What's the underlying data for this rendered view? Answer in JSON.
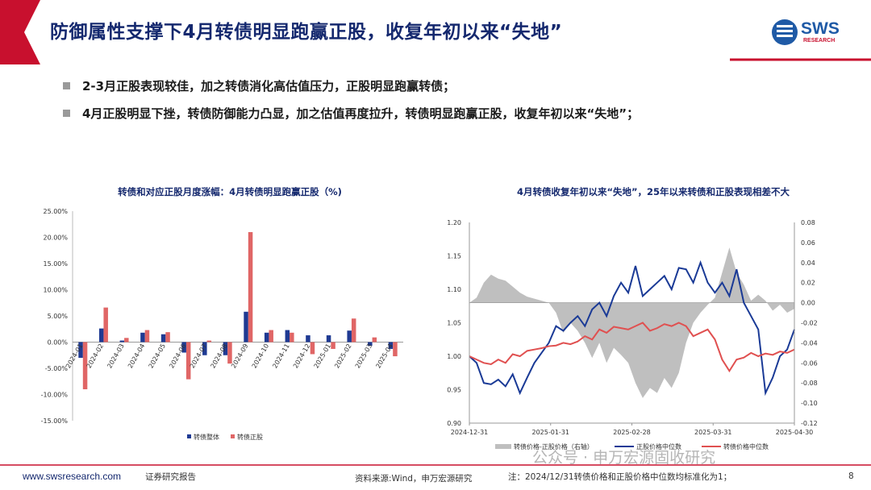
{
  "header": {
    "title": "防御属性支撑下4月转债明显跑赢正股，收复年初以来“失地”",
    "logo_text": "SWS",
    "logo_subtext": "RESEARCH",
    "brand_colors": {
      "navy": "#14286e",
      "red": "#c8102e",
      "bar_blue": "#1f3a93",
      "bar_red": "#e06666",
      "area_gray": "#bfbfbf"
    }
  },
  "bullets": [
    "2-3月正股表现较佳，加之转债消化高估值压力，正股明显跑赢转债；",
    "4月正股明显下挫，转债防御能力凸显，加之估值再度拉升，转债明显跑赢正股，收复年初以来“失地”；"
  ],
  "chart_data": [
    {
      "type": "bar",
      "title": "转债和对应正股月度涨幅：4月转债明显跑赢正股（%)",
      "categories": [
        "2024-01",
        "2024-02",
        "2024-03",
        "2024-04",
        "2024-05",
        "2024-06",
        "2024-07",
        "2024-08",
        "2024-09",
        "2024-10",
        "2024-11",
        "2024-12",
        "2025-01",
        "2025-02",
        "2025-03",
        "2025-04"
      ],
      "series": [
        {
          "name": "转债整体",
          "color": "#1f3a93",
          "values": [
            -3.0,
            2.6,
            0.3,
            1.8,
            1.5,
            -2.0,
            -2.5,
            -2.5,
            5.8,
            1.8,
            2.3,
            1.3,
            1.3,
            2.2,
            -0.7,
            -1.3
          ]
        },
        {
          "name": "转债正股",
          "color": "#e06666",
          "values": [
            -9.0,
            6.6,
            0.8,
            2.3,
            1.9,
            -7.1,
            0.3,
            -4.1,
            21.0,
            2.3,
            1.8,
            -2.3,
            -1.3,
            4.5,
            0.9,
            -2.7
          ]
        }
      ],
      "yticks": [
        "25.00%",
        "20.00%",
        "15.00%",
        "10.00%",
        "5.00%",
        "0.00%",
        "-5.00%",
        "-10.00%",
        "-15.00%"
      ],
      "ylim": [
        -15,
        25
      ],
      "legend": "bottom"
    },
    {
      "type": "line",
      "title": "4月转债收复年初以来“失地”，25年以来转债和正股表现相差不大",
      "x_ticks": [
        "2024-12-31",
        "2025-01-31",
        "2025-02-28",
        "2025-03-31",
        "2025-04-30"
      ],
      "y_left": {
        "ticks": [
          "1.20",
          "1.15",
          "1.10",
          "1.05",
          "1.00",
          "0.95",
          "0.90"
        ],
        "range": [
          0.9,
          1.2
        ]
      },
      "y_right": {
        "ticks": [
          "0.08",
          "0.06",
          "0.04",
          "0.02",
          "0.00",
          "-0.02",
          "-0.04",
          "-0.06",
          "-0.08",
          "-0.10",
          "-0.12"
        ],
        "range": [
          -0.12,
          0.08
        ]
      },
      "series": [
        {
          "name": "转债价格-正股价格（右轴）",
          "type": "area",
          "color": "#bfbfbf",
          "values": [
            0.0,
            0.005,
            0.02,
            0.028,
            0.024,
            0.022,
            0.016,
            0.01,
            0.006,
            0.004,
            0.002,
            0.0,
            -0.01,
            -0.03,
            -0.02,
            -0.028,
            -0.04,
            -0.055,
            -0.04,
            -0.06,
            -0.045,
            -0.052,
            -0.06,
            -0.08,
            -0.095,
            -0.085,
            -0.09,
            -0.075,
            -0.085,
            -0.07,
            -0.04,
            -0.02,
            -0.01,
            -0.002,
            0.005,
            0.03,
            0.055,
            0.03,
            0.018,
            0.002,
            0.008,
            0.002,
            -0.008,
            -0.002,
            -0.01,
            -0.006
          ]
        },
        {
          "name": "正股价格中位数",
          "type": "line",
          "color": "#1a3a96",
          "values": [
            1.0,
            0.99,
            0.96,
            0.958,
            0.965,
            0.955,
            0.973,
            0.945,
            0.968,
            0.99,
            1.005,
            1.02,
            1.045,
            1.038,
            1.05,
            1.06,
            1.045,
            1.07,
            1.08,
            1.06,
            1.09,
            1.11,
            1.095,
            1.135,
            1.09,
            1.1,
            1.11,
            1.12,
            1.1,
            1.132,
            1.13,
            1.11,
            1.14,
            1.11,
            1.095,
            1.11,
            1.09,
            1.13,
            1.08,
            1.06,
            1.04,
            0.945,
            0.968,
            1.0,
            1.01,
            1.04
          ]
        },
        {
          "name": "转债价格中位数",
          "type": "line",
          "color": "#e05050",
          "values": [
            1.0,
            0.995,
            0.99,
            0.988,
            0.995,
            0.99,
            1.003,
            1.0,
            1.008,
            1.01,
            1.012,
            1.015,
            1.016,
            1.02,
            1.018,
            1.022,
            1.03,
            1.025,
            1.04,
            1.035,
            1.044,
            1.042,
            1.04,
            1.045,
            1.05,
            1.038,
            1.042,
            1.048,
            1.045,
            1.05,
            1.045,
            1.03,
            1.035,
            1.04,
            1.025,
            0.995,
            0.978,
            0.995,
            0.998,
            1.005,
            1.0,
            1.004,
            1.002,
            1.007,
            1.005,
            1.01
          ]
        }
      ],
      "legend": "bottom"
    }
  ],
  "footer": {
    "url": "www.swsresearch.com",
    "report_type": "证券研究报告",
    "source": "资料来源:Wind，申万宏源研究",
    "note": "注：2024/12/31转债价格和正股价格中位数均标准化为1；",
    "watermark": "公众号 · 申万宏源固收研究",
    "page_number": "8"
  }
}
